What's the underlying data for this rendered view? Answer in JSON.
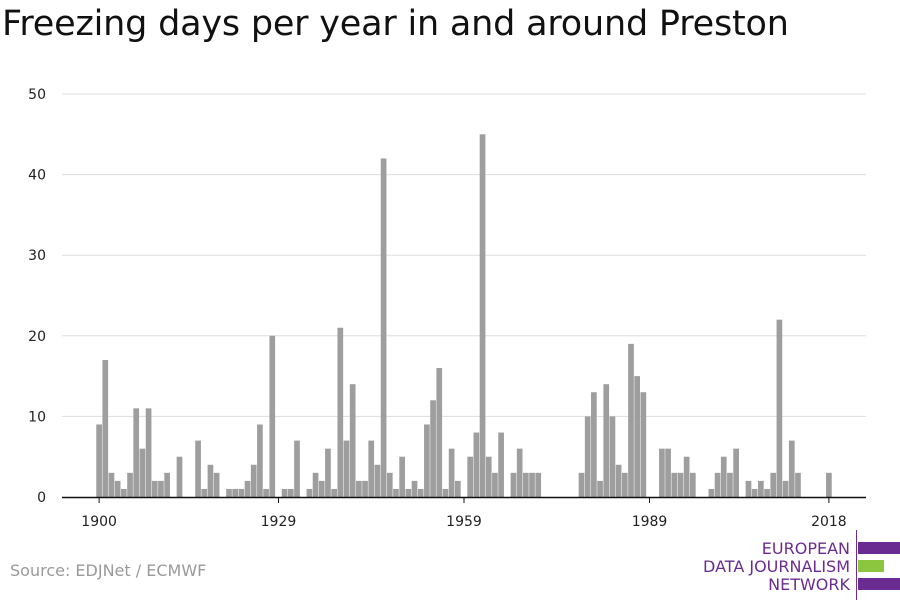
{
  "title": "Freezing days per year in and around Preston",
  "source": "Source: EDJNet / ECMWF",
  "logo": {
    "line1": "EUROPEAN",
    "line2": "DATA JOURNALISM",
    "line3": "NETWORK",
    "colors": [
      "#6b2c91",
      "#8cc63f",
      "#6b2c91"
    ]
  },
  "chart_data": {
    "type": "bar",
    "title": "Freezing days per year in and around Preston",
    "xlabel": "",
    "ylabel": "",
    "ylim": [
      0,
      50
    ],
    "yticks": [
      0,
      10,
      20,
      30,
      40,
      50
    ],
    "xticks": [
      1900,
      1929,
      1959,
      1989,
      2018
    ],
    "xlim": [
      1894,
      2024
    ],
    "grid": true,
    "bar_color": "#9e9e9e",
    "x": [
      1900,
      1901,
      1902,
      1903,
      1904,
      1905,
      1906,
      1907,
      1908,
      1909,
      1910,
      1911,
      1912,
      1913,
      1914,
      1915,
      1916,
      1917,
      1918,
      1919,
      1920,
      1921,
      1922,
      1923,
      1924,
      1925,
      1926,
      1927,
      1928,
      1929,
      1930,
      1931,
      1932,
      1933,
      1934,
      1935,
      1936,
      1937,
      1938,
      1939,
      1940,
      1941,
      1942,
      1943,
      1944,
      1945,
      1946,
      1947,
      1948,
      1949,
      1950,
      1951,
      1952,
      1953,
      1954,
      1955,
      1956,
      1957,
      1958,
      1959,
      1960,
      1961,
      1962,
      1963,
      1964,
      1965,
      1966,
      1967,
      1968,
      1969,
      1970,
      1971,
      1972,
      1973,
      1974,
      1975,
      1976,
      1977,
      1978,
      1979,
      1980,
      1981,
      1982,
      1983,
      1984,
      1985,
      1986,
      1987,
      1988,
      1989,
      1990,
      1991,
      1992,
      1993,
      1994,
      1995,
      1996,
      1997,
      1998,
      1999,
      2000,
      2001,
      2002,
      2003,
      2004,
      2005,
      2006,
      2007,
      2008,
      2009,
      2010,
      2011,
      2012,
      2013,
      2014,
      2015,
      2016,
      2017,
      2018
    ],
    "values": [
      9,
      17,
      3,
      2,
      1,
      3,
      11,
      6,
      11,
      2,
      2,
      3,
      0,
      5,
      0,
      0,
      7,
      1,
      4,
      3,
      0,
      1,
      1,
      1,
      2,
      4,
      9,
      1,
      20,
      0,
      1,
      1,
      7,
      0,
      1,
      3,
      2,
      6,
      1,
      21,
      7,
      14,
      2,
      2,
      7,
      4,
      42,
      3,
      1,
      5,
      1,
      2,
      1,
      9,
      12,
      16,
      1,
      6,
      2,
      0,
      5,
      8,
      45,
      5,
      3,
      8,
      0,
      3,
      6,
      3,
      3,
      3,
      0,
      0,
      0,
      0,
      0,
      0,
      3,
      10,
      13,
      2,
      14,
      10,
      4,
      3,
      19,
      15,
      13,
      0,
      0,
      6,
      6,
      3,
      3,
      5,
      3,
      0,
      0,
      1,
      3,
      5,
      3,
      6,
      0,
      2,
      1,
      2,
      1,
      3,
      22,
      2,
      7,
      3,
      0,
      0,
      0,
      0,
      3
    ]
  }
}
